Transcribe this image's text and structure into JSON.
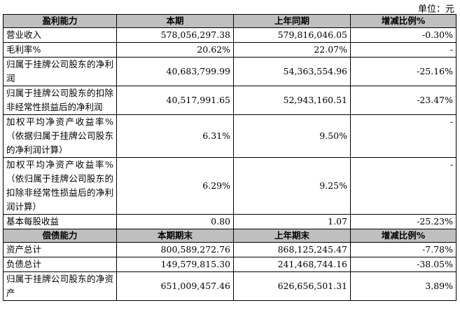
{
  "unit_label": "单位：元",
  "profit": {
    "headers": [
      "盈利能力",
      "本期",
      "上年同期",
      "增减比例%"
    ],
    "rows": [
      {
        "label": "营业收入",
        "current": "578,056,297.38",
        "previous": "579,816,046.05",
        "change": "-0.30%"
      },
      {
        "label": "毛利率%",
        "current": "20.62%",
        "previous": "22.07%",
        "change": "-"
      },
      {
        "label": "归属于挂牌公司股东的净利润",
        "current": "40,683,799.99",
        "previous": "54,363,554.96",
        "change": "-25.16%"
      },
      {
        "label": "归属于挂牌公司股东的扣除非经常性损益后的净利润",
        "current": "40,517,991.65",
        "previous": "52,943,160.51",
        "change": "-23.47%"
      },
      {
        "label": "加权平均净资产收益率%（依据归属于挂牌公司股东的净利润计算）",
        "current": "6.31%",
        "previous": "9.50%",
        "change": "-"
      },
      {
        "label": "加权平均净资产收益率%（依归属于挂牌公司股东的扣除非经常性损益后的净利润计算）",
        "current": "6.29%",
        "previous": "9.25%",
        "change": "-"
      },
      {
        "label": "基本每股收益",
        "current": "0.80",
        "previous": "1.07",
        "change": "-25.23%"
      }
    ]
  },
  "solvency": {
    "headers": [
      "偿债能力",
      "本期期末",
      "上年期末",
      "增减比例%"
    ],
    "rows": [
      {
        "label": "资产总计",
        "current": "800,589,272.76",
        "previous": "868,125,245.47",
        "change": "-7.78%"
      },
      {
        "label": "负债总计",
        "current": "149,579,815.30",
        "previous": "241,468,744.16",
        "change": "-38.05%"
      },
      {
        "label": "归属于挂牌公司股东的净资产",
        "current": "651,009,457.46",
        "previous": "626,656,501.31",
        "change": "3.89%"
      }
    ]
  }
}
